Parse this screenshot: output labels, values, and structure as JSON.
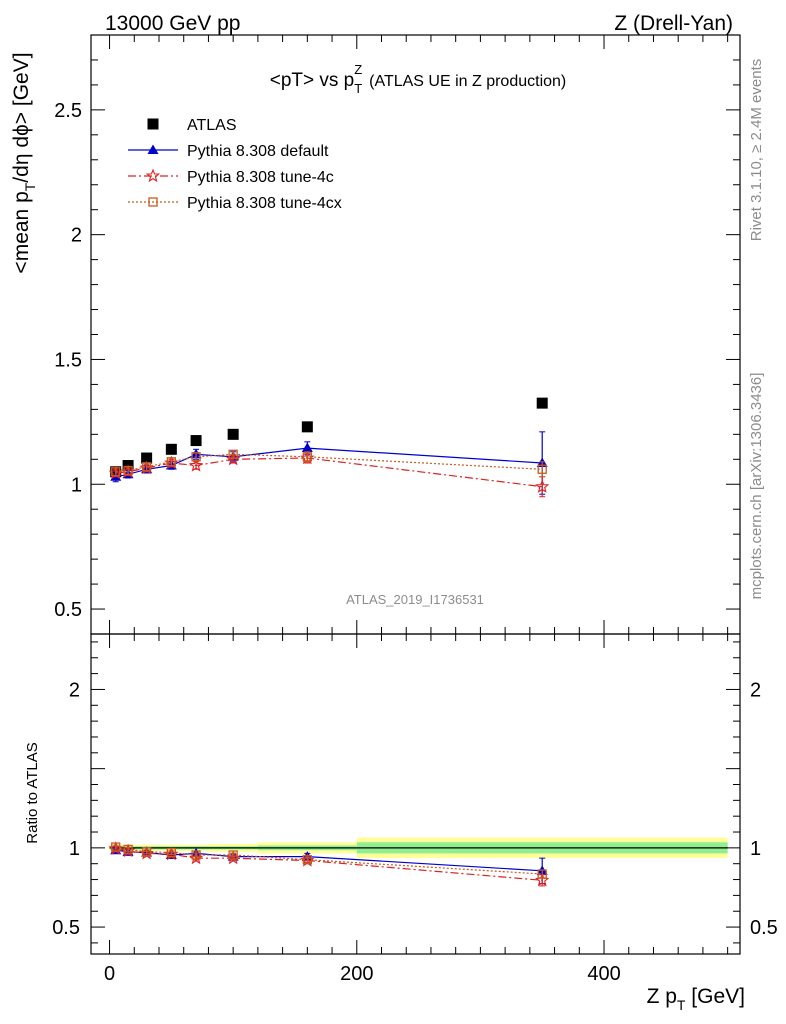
{
  "header": {
    "left": "13000 GeV pp",
    "right": "Z (Drell-Yan)"
  },
  "side": {
    "rivet": "Rivet 3.1.10, ≥ 2.4M events",
    "mcplots": "mcplots.cern.ch [arXiv:1306.3436]"
  },
  "watermark": "ATLAS_2019_I1736531",
  "colors": {
    "atlas": "#000000",
    "default": "#0000cc",
    "tune4c": "#dd2222",
    "tune4cx": "#c85a1e",
    "band_inner": "#90ee90",
    "band_outer": "#ffff99"
  },
  "chart_data": [
    {
      "type": "scatter",
      "panel": "main",
      "title": {
        "main": "<pT> vs p",
        "sub": "T",
        "sup": "Z",
        "rest": "(ATLAS UE in Z production)"
      },
      "ylabel": {
        "a": "<mean p",
        "sub": "T",
        "b": "/dη dϕ> [GeV]"
      },
      "xlim": [
        -15,
        510
      ],
      "ylim": [
        0.4,
        2.8
      ],
      "yticks": [
        "0.5",
        "1",
        "1.5",
        "2",
        "2.5"
      ],
      "legend": {
        "position": "top-left",
        "entries": [
          {
            "key": "atlas",
            "label": "ATLAS"
          },
          {
            "key": "default",
            "label": "Pythia 8.308 default"
          },
          {
            "key": "tune4c",
            "label": "Pythia 8.308 tune-4c"
          },
          {
            "key": "tune4cx",
            "label": "Pythia 8.308 tune-4cx"
          }
        ]
      },
      "x": [
        5,
        15,
        30,
        50,
        70,
        100,
        160,
        350
      ],
      "series": [
        {
          "key": "atlas",
          "name": "ATLAS",
          "values": [
            1.05,
            1.075,
            1.105,
            1.14,
            1.175,
            1.2,
            1.23,
            1.325
          ]
        },
        {
          "key": "default",
          "name": "Pythia 8.308 default",
          "values": [
            1.03,
            1.04,
            1.06,
            1.075,
            1.12,
            1.11,
            1.145,
            1.085
          ],
          "err": [
            0.02,
            0.015,
            0.015,
            0.015,
            0.02,
            0.02,
            0.025,
            0.125
          ]
        },
        {
          "key": "tune4c",
          "name": "Pythia 8.308 tune-4c",
          "values": [
            1.045,
            1.05,
            1.065,
            1.085,
            1.075,
            1.1,
            1.105,
            0.99
          ],
          "err": [
            0.015,
            0.015,
            0.015,
            0.015,
            0.015,
            0.015,
            0.02,
            0.04
          ]
        },
        {
          "key": "tune4cx",
          "name": "Pythia 8.308 tune-4cx",
          "values": [
            1.05,
            1.055,
            1.07,
            1.09,
            1.11,
            1.12,
            1.11,
            1.06
          ],
          "err": [
            0.015,
            0.015,
            0.015,
            0.015,
            0.015,
            0.015,
            0.02,
            0.03
          ]
        }
      ]
    },
    {
      "type": "scatter",
      "panel": "ratio",
      "ylabel": "Ratio to ATLAS",
      "xlabel": {
        "a": "Z p",
        "sub": "T",
        "b": " [GeV]"
      },
      "xlim": [
        -15,
        510
      ],
      "ylim": [
        0.33,
        2.35
      ],
      "xticks": [
        "0",
        "200",
        "400"
      ],
      "yticks": [
        "0.5",
        "1",
        "2"
      ],
      "x": [
        5,
        15,
        30,
        50,
        70,
        100,
        160,
        350
      ],
      "bands": [
        {
          "x0": 0,
          "x1": 10,
          "inner": 0.01,
          "outer": 0.02
        },
        {
          "x0": 10,
          "x1": 20,
          "inner": 0.01,
          "outer": 0.02
        },
        {
          "x0": 20,
          "x1": 40,
          "inner": 0.01,
          "outer": 0.02
        },
        {
          "x0": 40,
          "x1": 60,
          "inner": 0.01,
          "outer": 0.02
        },
        {
          "x0": 60,
          "x1": 80,
          "inner": 0.01,
          "outer": 0.02
        },
        {
          "x0": 80,
          "x1": 120,
          "inner": 0.01,
          "outer": 0.025
        },
        {
          "x0": 120,
          "x1": 200,
          "inner": 0.015,
          "outer": 0.035
        },
        {
          "x0": 200,
          "x1": 500,
          "inner": 0.035,
          "outer": 0.065
        }
      ],
      "series": [
        {
          "key": "default",
          "values": [
            0.985,
            0.975,
            0.97,
            0.955,
            0.965,
            0.945,
            0.945,
            0.855
          ],
          "err": [
            0.015,
            0.015,
            0.012,
            0.012,
            0.015,
            0.015,
            0.02,
            0.08
          ]
        },
        {
          "key": "tune4c",
          "values": [
            0.995,
            0.98,
            0.965,
            0.96,
            0.935,
            0.935,
            0.92,
            0.795
          ],
          "err": [
            0.012,
            0.012,
            0.012,
            0.012,
            0.012,
            0.012,
            0.015,
            0.035
          ]
        },
        {
          "key": "tune4cx",
          "values": [
            1.005,
            0.99,
            0.975,
            0.97,
            0.955,
            0.955,
            0.925,
            0.835
          ],
          "err": [
            0.012,
            0.012,
            0.012,
            0.012,
            0.012,
            0.012,
            0.015,
            0.025
          ]
        }
      ]
    }
  ]
}
